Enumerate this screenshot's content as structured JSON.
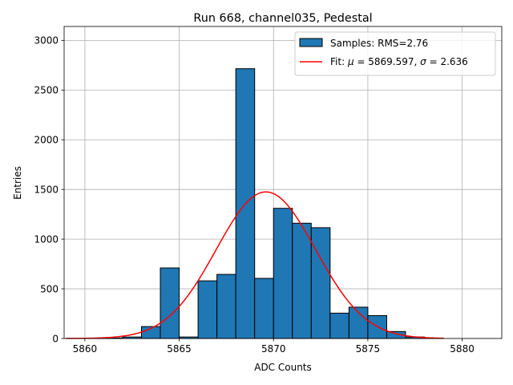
{
  "chart_data": {
    "type": "bar",
    "title": "Run 668, channel035, Pedestal",
    "xlabel": "ADC Counts",
    "ylabel": "Entries",
    "xlim": [
      5858.9,
      5882.1
    ],
    "ylim": [
      0,
      3140
    ],
    "x_ticks": [
      5860,
      5865,
      5870,
      5875,
      5880
    ],
    "y_ticks": [
      0,
      500,
      1000,
      1500,
      2000,
      2500,
      3000
    ],
    "grid": true,
    "legend_position": "top-right",
    "bin_width": 1,
    "histogram": {
      "name": "Samples: RMS=2.76",
      "color": "#1f77b4",
      "bins": [
        {
          "left": 5860,
          "count": 2
        },
        {
          "left": 5861,
          "count": 5
        },
        {
          "left": 5862,
          "count": 15
        },
        {
          "left": 5863,
          "count": 120
        },
        {
          "left": 5864,
          "count": 710
        },
        {
          "left": 5865,
          "count": 15
        },
        {
          "left": 5866,
          "count": 580
        },
        {
          "left": 5867,
          "count": 645
        },
        {
          "left": 5868,
          "count": 2715
        },
        {
          "left": 5869,
          "count": 605
        },
        {
          "left": 5870,
          "count": 1310
        },
        {
          "left": 5871,
          "count": 1160
        },
        {
          "left": 5872,
          "count": 1115
        },
        {
          "left": 5873,
          "count": 255
        },
        {
          "left": 5874,
          "count": 315
        },
        {
          "left": 5875,
          "count": 230
        },
        {
          "left": 5876,
          "count": 70
        },
        {
          "left": 5877,
          "count": 15
        },
        {
          "left": 5878,
          "count": 3
        }
      ]
    },
    "fit": {
      "name": "Fit: μ = 5869.597, σ = 2.636",
      "label_prefix": "Fit: ",
      "mu_symbol": "μ",
      "mu_text": " = 5869.597, ",
      "sigma_symbol": "σ",
      "sigma_text": " = 2.636",
      "color": "#ff0000",
      "mu": 5869.597,
      "sigma": 2.636,
      "amplitude": 1475,
      "x_range": [
        5859,
        5879
      ]
    }
  }
}
